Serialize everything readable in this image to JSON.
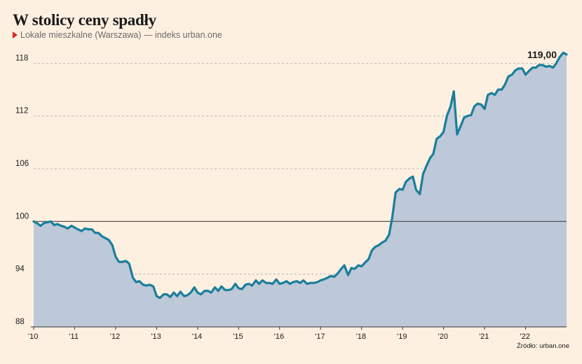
{
  "header": {
    "title": "W stolicy ceny spadły",
    "subtitle": "Lokale mieszkalne (Warszawa) — indeks urban.one"
  },
  "source": "Źródło: urban.one",
  "colors": {
    "line": "#1a7e9b",
    "area": "#bdc8d8",
    "background": "#fdf0e1",
    "marker": "#e0231f"
  },
  "chart_data": {
    "type": "area",
    "title": "W stolicy ceny spadły",
    "subtitle": "Lokale mieszkalne (Warszawa) — indeks urban.one",
    "xlabel": "",
    "ylabel": "",
    "ylim": [
      88,
      119
    ],
    "yticks": [
      88,
      94,
      100,
      106,
      112,
      118
    ],
    "ytick_labels": [
      "88",
      "94",
      "100",
      "106",
      "112",
      "118"
    ],
    "xticks": [
      2010,
      2011,
      2012,
      2013,
      2014,
      2015,
      2016,
      2017,
      2018,
      2019,
      2020,
      2021,
      2022
    ],
    "xtick_labels": [
      "'10",
      "'11",
      "'12",
      "'13",
      "'14",
      "'15",
      "'16",
      "'17",
      "'18",
      "'19",
      "'20",
      "'21",
      "'22"
    ],
    "baseline": 100,
    "grid": true,
    "last_value_label": "119,00",
    "series": [
      {
        "points": [
          [
            2010.0,
            100.0
          ],
          [
            2010.08,
            99.8
          ],
          [
            2010.17,
            99.5
          ],
          [
            2010.25,
            99.8
          ],
          [
            2010.33,
            99.9
          ],
          [
            2010.42,
            100.0
          ],
          [
            2010.5,
            99.6
          ],
          [
            2010.58,
            99.7
          ],
          [
            2010.67,
            99.5
          ],
          [
            2010.75,
            99.4
          ],
          [
            2010.83,
            99.2
          ],
          [
            2010.92,
            99.5
          ],
          [
            2011.0,
            99.3
          ],
          [
            2011.08,
            99.1
          ],
          [
            2011.17,
            98.9
          ],
          [
            2011.25,
            99.2
          ],
          [
            2011.33,
            99.1
          ],
          [
            2011.42,
            99.1
          ],
          [
            2011.5,
            98.7
          ],
          [
            2011.58,
            98.7
          ],
          [
            2011.67,
            98.3
          ],
          [
            2011.75,
            98.1
          ],
          [
            2011.83,
            97.9
          ],
          [
            2011.92,
            97.3
          ],
          [
            2012.0,
            96.0
          ],
          [
            2012.08,
            95.4
          ],
          [
            2012.17,
            95.4
          ],
          [
            2012.25,
            95.5
          ],
          [
            2012.33,
            95.2
          ],
          [
            2012.42,
            93.6
          ],
          [
            2012.5,
            93.1
          ],
          [
            2012.58,
            93.2
          ],
          [
            2012.67,
            92.8
          ],
          [
            2012.75,
            92.7
          ],
          [
            2012.83,
            92.8
          ],
          [
            2012.92,
            92.6
          ],
          [
            2013.0,
            91.5
          ],
          [
            2013.08,
            91.3
          ],
          [
            2013.17,
            91.7
          ],
          [
            2013.25,
            91.7
          ],
          [
            2013.33,
            91.4
          ],
          [
            2013.42,
            91.9
          ],
          [
            2013.5,
            91.5
          ],
          [
            2013.58,
            92.0
          ],
          [
            2013.67,
            91.5
          ],
          [
            2013.75,
            91.6
          ],
          [
            2013.83,
            91.9
          ],
          [
            2013.92,
            92.5
          ],
          [
            2014.0,
            91.9
          ],
          [
            2014.08,
            91.7
          ],
          [
            2014.17,
            92.1
          ],
          [
            2014.25,
            92.1
          ],
          [
            2014.33,
            91.9
          ],
          [
            2014.42,
            92.5
          ],
          [
            2014.5,
            92.1
          ],
          [
            2014.58,
            92.6
          ],
          [
            2014.67,
            92.2
          ],
          [
            2014.75,
            92.2
          ],
          [
            2014.83,
            92.3
          ],
          [
            2014.92,
            92.9
          ],
          [
            2015.0,
            92.4
          ],
          [
            2015.08,
            92.3
          ],
          [
            2015.17,
            92.8
          ],
          [
            2015.25,
            92.9
          ],
          [
            2015.33,
            92.7
          ],
          [
            2015.42,
            93.3
          ],
          [
            2015.5,
            92.9
          ],
          [
            2015.58,
            93.3
          ],
          [
            2015.67,
            93.0
          ],
          [
            2015.75,
            93.0
          ],
          [
            2015.83,
            92.9
          ],
          [
            2015.92,
            93.4
          ],
          [
            2016.0,
            92.9
          ],
          [
            2016.08,
            93.0
          ],
          [
            2016.17,
            93.2
          ],
          [
            2016.25,
            92.9
          ],
          [
            2016.33,
            93.1
          ],
          [
            2016.42,
            93.2
          ],
          [
            2016.5,
            93.0
          ],
          [
            2016.58,
            93.3
          ],
          [
            2016.67,
            92.9
          ],
          [
            2016.75,
            93.0
          ],
          [
            2016.83,
            93.0
          ],
          [
            2016.92,
            93.1
          ],
          [
            2017.0,
            93.3
          ],
          [
            2017.08,
            93.4
          ],
          [
            2017.17,
            93.6
          ],
          [
            2017.25,
            93.8
          ],
          [
            2017.33,
            93.7
          ],
          [
            2017.42,
            94.1
          ],
          [
            2017.5,
            94.6
          ],
          [
            2017.58,
            95.0
          ],
          [
            2017.67,
            93.9
          ],
          [
            2017.75,
            94.7
          ],
          [
            2017.83,
            94.6
          ],
          [
            2017.92,
            95.0
          ],
          [
            2018.0,
            94.9
          ],
          [
            2018.08,
            95.3
          ],
          [
            2018.17,
            95.7
          ],
          [
            2018.25,
            96.7
          ],
          [
            2018.33,
            97.1
          ],
          [
            2018.42,
            97.3
          ],
          [
            2018.5,
            97.6
          ],
          [
            2018.58,
            97.8
          ],
          [
            2018.67,
            98.5
          ],
          [
            2018.75,
            100.5
          ],
          [
            2018.83,
            103.3
          ],
          [
            2018.92,
            103.7
          ],
          [
            2019.0,
            103.6
          ],
          [
            2019.08,
            104.5
          ],
          [
            2019.17,
            104.9
          ],
          [
            2019.25,
            105.1
          ],
          [
            2019.33,
            103.6
          ],
          [
            2019.42,
            103.1
          ],
          [
            2019.5,
            105.4
          ],
          [
            2019.58,
            106.3
          ],
          [
            2019.67,
            107.2
          ],
          [
            2019.75,
            107.7
          ],
          [
            2019.83,
            109.4
          ],
          [
            2019.92,
            109.7
          ],
          [
            2020.0,
            110.2
          ],
          [
            2020.08,
            112.0
          ],
          [
            2020.17,
            113.1
          ],
          [
            2020.25,
            114.8
          ],
          [
            2020.33,
            109.9
          ],
          [
            2020.42,
            110.9
          ],
          [
            2020.5,
            111.8
          ],
          [
            2020.58,
            112.0
          ],
          [
            2020.67,
            112.1
          ],
          [
            2020.75,
            113.1
          ],
          [
            2020.83,
            113.4
          ],
          [
            2020.92,
            113.3
          ],
          [
            2021.0,
            112.8
          ],
          [
            2021.08,
            114.4
          ],
          [
            2021.17,
            114.6
          ],
          [
            2021.25,
            114.4
          ],
          [
            2021.33,
            115.0
          ],
          [
            2021.42,
            115.0
          ],
          [
            2021.5,
            115.6
          ],
          [
            2021.58,
            116.5
          ],
          [
            2021.67,
            116.7
          ],
          [
            2021.75,
            117.2
          ],
          [
            2021.83,
            117.4
          ],
          [
            2021.92,
            117.4
          ],
          [
            2022.0,
            116.7
          ],
          [
            2022.08,
            117.1
          ],
          [
            2022.17,
            117.5
          ],
          [
            2022.25,
            117.5
          ],
          [
            2022.33,
            117.8
          ],
          [
            2022.42,
            117.8
          ],
          [
            2022.5,
            117.6
          ],
          [
            2022.58,
            117.7
          ],
          [
            2022.67,
            117.5
          ],
          [
            2022.75,
            118.0
          ],
          [
            2022.83,
            118.7
          ],
          [
            2022.92,
            119.2
          ],
          [
            2023.0,
            119.0
          ]
        ]
      }
    ]
  }
}
